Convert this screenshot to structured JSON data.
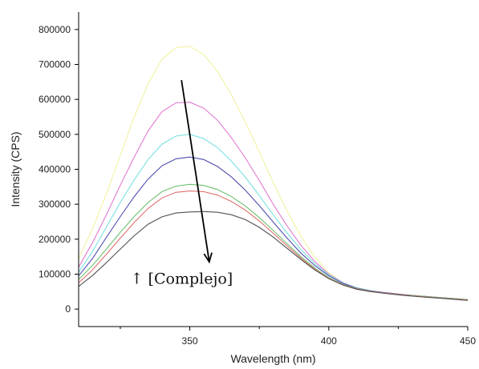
{
  "chart_data": {
    "type": "line",
    "title": "",
    "xlabel": "Wavelength (nm)",
    "ylabel": "Intensity (CPS)",
    "xlim": [
      310,
      450
    ],
    "ylim": [
      -50000,
      850000
    ],
    "x_ticks": [
      350,
      400,
      450
    ],
    "x_minor_ticks": [
      325,
      375,
      425
    ],
    "y_ticks": [
      0,
      100000,
      200000,
      300000,
      400000,
      500000,
      600000,
      700000,
      800000
    ],
    "grid": false,
    "legend": "none",
    "x": [
      310,
      315,
      320,
      325,
      330,
      335,
      340,
      345,
      350,
      355,
      360,
      365,
      370,
      375,
      380,
      385,
      390,
      395,
      400,
      405,
      410,
      415,
      420,
      425,
      430,
      435,
      440,
      445,
      450
    ],
    "series": [
      {
        "color": "#f2f2a0",
        "values": [
          145000,
          230000,
          330000,
          440000,
          550000,
          645000,
          715000,
          748000,
          752000,
          728000,
          680000,
          613000,
          535000,
          450000,
          362000,
          280000,
          208000,
          148000,
          104000,
          76000,
          60000,
          52000,
          47000,
          43000,
          39000,
          36000,
          33000,
          30000,
          27000
        ]
      },
      {
        "color": "#e07ad0",
        "values": [
          120000,
          190000,
          270000,
          355000,
          435000,
          510000,
          565000,
          590000,
          592000,
          575000,
          540000,
          490000,
          432000,
          368000,
          300000,
          238000,
          182000,
          136000,
          100000,
          76000,
          61000,
          53000,
          47000,
          43000,
          39000,
          36000,
          33000,
          30000,
          27000
        ]
      },
      {
        "color": "#7ae0e0",
        "values": [
          105000,
          165000,
          235000,
          305000,
          370000,
          428000,
          472000,
          495000,
          500000,
          488000,
          462000,
          423000,
          377000,
          325000,
          270000,
          218000,
          170000,
          130000,
          98000,
          75000,
          61000,
          53000,
          47000,
          43000,
          39000,
          36000,
          33000,
          30000,
          27000
        ]
      },
      {
        "color": "#5050b0",
        "values": [
          95000,
          145000,
          205000,
          265000,
          322000,
          372000,
          410000,
          430000,
          435000,
          428000,
          408000,
          378000,
          340000,
          296000,
          249000,
          203000,
          160000,
          124000,
          95000,
          74000,
          60000,
          52000,
          47000,
          43000,
          39000,
          36000,
          33000,
          30000,
          27000
        ]
      },
      {
        "color": "#70c070",
        "values": [
          85000,
          125000,
          172000,
          220000,
          265000,
          305000,
          336000,
          352000,
          357000,
          354000,
          342000,
          322000,
          295000,
          262000,
          225000,
          187000,
          150000,
          117000,
          90000,
          71000,
          59000,
          51000,
          46000,
          42000,
          39000,
          36000,
          33000,
          30000,
          27000
        ]
      },
      {
        "color": "#e07070",
        "values": [
          75000,
          112000,
          157000,
          203000,
          248000,
          288000,
          318000,
          334000,
          338000,
          336000,
          326000,
          308000,
          283000,
          252000,
          217000,
          181000,
          146000,
          114000,
          88000,
          70000,
          58000,
          51000,
          46000,
          42000,
          38000,
          35000,
          32000,
          29000,
          26000
        ]
      },
      {
        "color": "#505050",
        "values": [
          65000,
          96000,
          133000,
          172000,
          210000,
          243000,
          264000,
          275000,
          278000,
          279000,
          277000,
          270000,
          256000,
          234000,
          206000,
          174000,
          142000,
          112000,
          87000,
          69000,
          57000,
          50000,
          45000,
          41000,
          37000,
          34000,
          31000,
          28000,
          25000
        ]
      }
    ],
    "annotations": [
      {
        "text": "↑ [Complejo]",
        "type": "arrow",
        "from": [
          347,
          655000
        ],
        "to": [
          357,
          135000
        ],
        "label_at": [
          335,
          95000
        ]
      }
    ]
  }
}
